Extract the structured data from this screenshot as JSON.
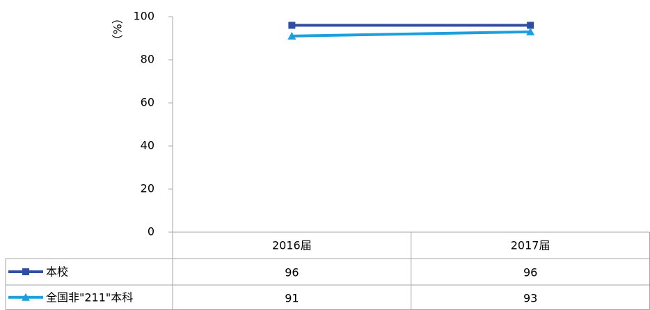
{
  "chart_data": {
    "type": "line",
    "y_label": "（%）",
    "categories": [
      "2016届",
      "2017届"
    ],
    "series": [
      {
        "name": "本校",
        "color": "#2e4ea2",
        "marker": "square",
        "values": [
          96,
          96
        ]
      },
      {
        "name": "全国非\"211\"本科",
        "color": "#1c9fdc",
        "marker": "triangle",
        "values": [
          91,
          93
        ]
      }
    ],
    "ylim": [
      0,
      100
    ],
    "yticks": [
      0,
      20,
      40,
      60,
      80,
      100
    ],
    "data_table": true
  }
}
